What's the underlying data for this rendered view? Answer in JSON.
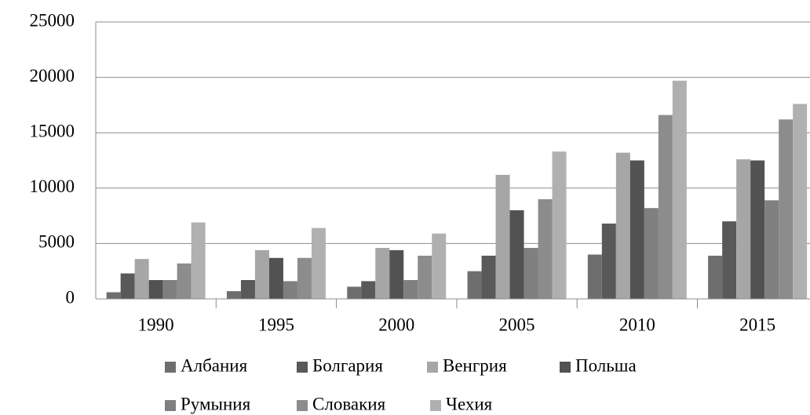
{
  "chart_data": {
    "type": "bar",
    "categories": [
      "1990",
      "1995",
      "2000",
      "2005",
      "2010",
      "2015"
    ],
    "series": [
      {
        "name": "Албания",
        "color": "#6e6e6e",
        "values": [
          600,
          700,
          1100,
          2500,
          4000,
          3900
        ]
      },
      {
        "name": "Болгария",
        "color": "#595959",
        "values": [
          2300,
          1700,
          1600,
          3900,
          6800,
          7000
        ]
      },
      {
        "name": "Венгрия",
        "color": "#a6a6a6",
        "values": [
          3600,
          4400,
          4600,
          11200,
          13200,
          12600
        ]
      },
      {
        "name": "Польша",
        "color": "#525252",
        "values": [
          1700,
          3700,
          4400,
          8000,
          12500,
          12500
        ]
      },
      {
        "name": "Румыния",
        "color": "#7f7f7f",
        "values": [
          1700,
          1600,
          1700,
          4600,
          8200,
          8900
        ]
      },
      {
        "name": "Словакия",
        "color": "#8c8c8c",
        "values": [
          3200,
          3700,
          3900,
          9000,
          16600,
          16200
        ]
      },
      {
        "name": "Чехия",
        "color": "#b0b0b0",
        "values": [
          6900,
          6400,
          5900,
          13300,
          19700,
          17600
        ]
      }
    ],
    "ylim": [
      0,
      25000
    ],
    "yticks": [
      0,
      5000,
      10000,
      15000,
      20000,
      25000
    ],
    "grid": true,
    "legend": "bottom"
  }
}
